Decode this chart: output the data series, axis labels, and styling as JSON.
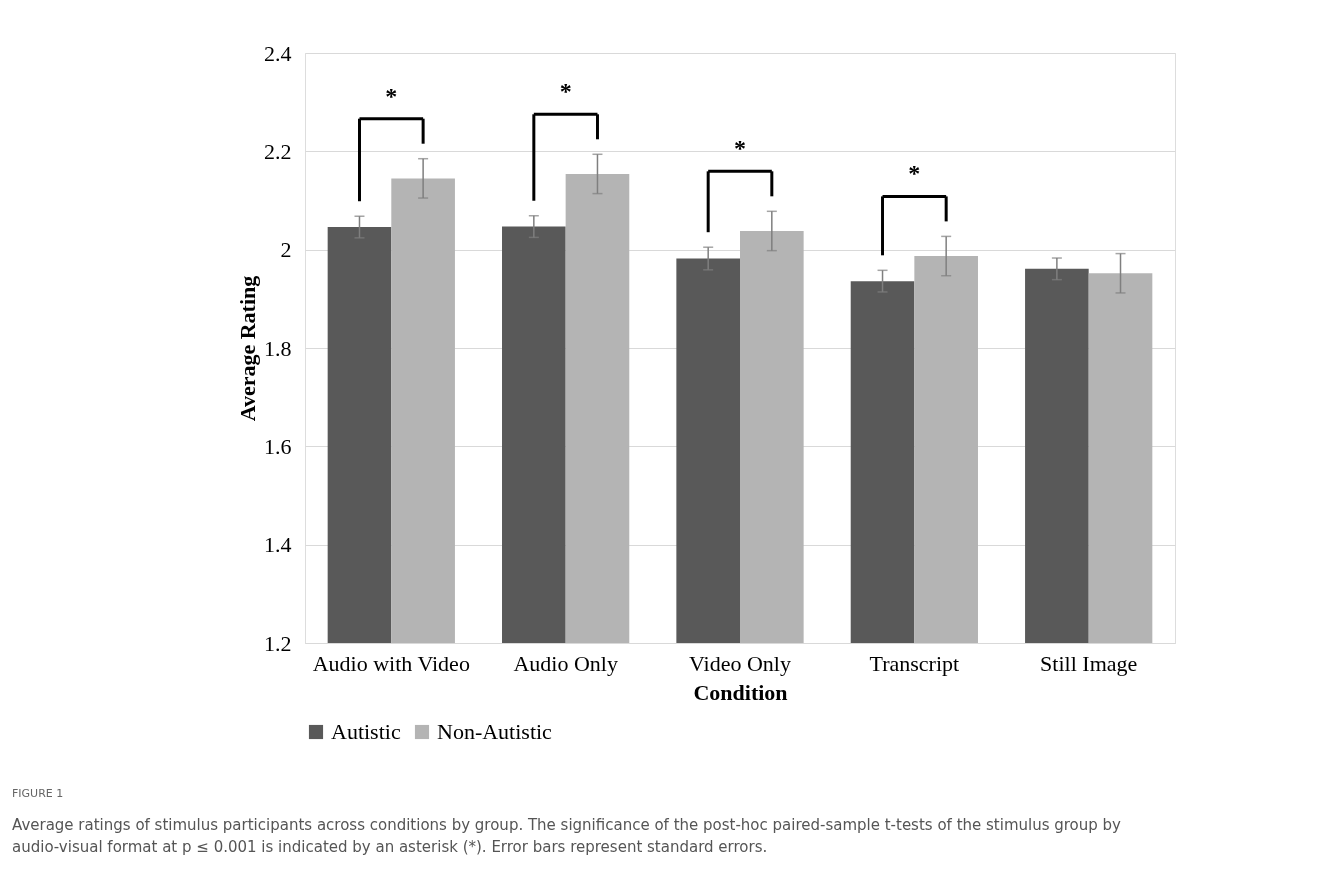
{
  "chart_data": {
    "type": "bar",
    "xlabel": "Condition",
    "ylabel": "Average Rating",
    "categories": [
      "Audio with Video",
      "Audio Only",
      "Video Only",
      "Transcript",
      "Still Image"
    ],
    "series": [
      {
        "name": "Autistic",
        "color": "#595959",
        "values": [
          2.046,
          2.047,
          1.982,
          1.936,
          1.961
        ],
        "errors": [
          0.022,
          0.022,
          0.023,
          0.022,
          0.022
        ]
      },
      {
        "name": "Non-Autistic",
        "color": "#b4b4b4",
        "values": [
          2.145,
          2.154,
          2.038,
          1.987,
          1.952
        ],
        "errors": [
          0.04,
          0.04,
          0.04,
          0.04,
          0.04
        ]
      }
    ],
    "ylim": [
      1.2,
      2.4
    ],
    "yticks": [
      1.2,
      1.4,
      1.6,
      1.8,
      {
        "value": 2,
        "label": "2"
      },
      2.2,
      2.4
    ],
    "grid": "y",
    "legend": "bottom",
    "annotations": [
      "*",
      "*",
      "*",
      "*",
      "FIGURE 1",
      "Average ratings of stimulus participants across conditions by group. The significance of the post-hoc paired-sample t-tests of the stimulus group by",
      "audio-visual format at p ≤ 0.001 is indicated by an asterisk (*). Error bars represent standard errors."
    ]
  }
}
